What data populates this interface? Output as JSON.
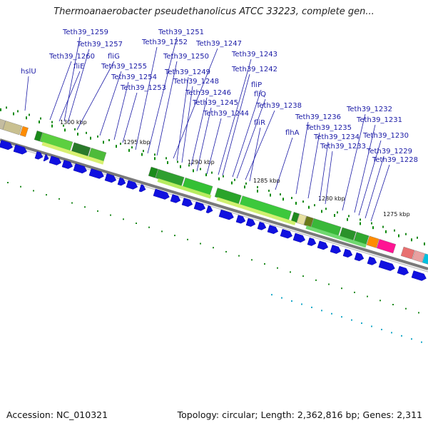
{
  "title": "Thermoanaerobacter pseudethanolicus ATCC 33223, complete gen...",
  "footer": {
    "accession": "Accession: NC_010321",
    "info": "Topology: circular; Length: 2,362,816 bp; Genes: 2,311"
  },
  "colors": {
    "gene_label": "#1a1aa6",
    "forward_gene": "#1010e0",
    "tick": "#0a8a0a",
    "backbone": "#7a7a7a"
  },
  "kbp_labels": [
    "1300 kbp",
    "1295 kbp",
    "1290 kbp",
    "1285 kbp",
    "1280 kbp",
    "1275 kbp"
  ],
  "gene_labels": [
    "Teth39_1259",
    "Teth39_1257",
    "Teth39_1260",
    "fliG",
    "fliE",
    "Teth39_1255",
    "hslU",
    "Teth39_1254",
    "Teth39_1253",
    "Teth39_1251",
    "Teth39_1252",
    "Teth39_1250",
    "Teth39_1247",
    "Teth39_1249",
    "Teth39_1248",
    "Teth39_1246",
    "Teth39_1245",
    "Teth39_1244",
    "Teth39_1243",
    "Teth39_1242",
    "fliP",
    "fliQ",
    "Teth39_1238",
    "fliR",
    "flhA",
    "Teth39_1236",
    "Teth39_1235",
    "Teth39_1234",
    "Teth39_1233",
    "Teth39_1232",
    "Teth39_1231",
    "Teth39_1230",
    "Teth39_1229",
    "Teth39_1228"
  ]
}
